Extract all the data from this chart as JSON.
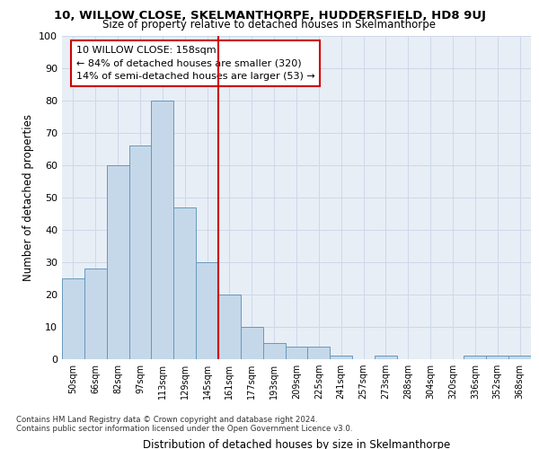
{
  "title": "10, WILLOW CLOSE, SKELMANTHORPE, HUDDERSFIELD, HD8 9UJ",
  "subtitle": "Size of property relative to detached houses in Skelmanthorpe",
  "xlabel": "Distribution of detached houses by size in Skelmanthorpe",
  "ylabel": "Number of detached properties",
  "categories": [
    "50sqm",
    "66sqm",
    "82sqm",
    "97sqm",
    "113sqm",
    "129sqm",
    "145sqm",
    "161sqm",
    "177sqm",
    "193sqm",
    "209sqm",
    "225sqm",
    "241sqm",
    "257sqm",
    "273sqm",
    "288sqm",
    "304sqm",
    "320sqm",
    "336sqm",
    "352sqm",
    "368sqm"
  ],
  "values": [
    25,
    28,
    60,
    66,
    80,
    47,
    30,
    20,
    10,
    5,
    4,
    4,
    1,
    0,
    1,
    0,
    0,
    0,
    1,
    1,
    1
  ],
  "bar_color": "#c5d8ea",
  "bar_edge_color": "#6699bb",
  "vline_color": "#cc0000",
  "vline_x": 6.5,
  "annotation_line1": "10 WILLOW CLOSE: 158sqm",
  "annotation_line2": "← 84% of detached houses are smaller (320)",
  "annotation_line3": "14% of semi-detached houses are larger (53) →",
  "annotation_box_color": "#ffffff",
  "annotation_box_edge_color": "#cc0000",
  "ylim": [
    0,
    100
  ],
  "yticks": [
    0,
    10,
    20,
    30,
    40,
    50,
    60,
    70,
    80,
    90,
    100
  ],
  "grid_color": "#cdd8e8",
  "bg_color": "#e8eef6",
  "footer_line1": "Contains HM Land Registry data © Crown copyright and database right 2024.",
  "footer_line2": "Contains public sector information licensed under the Open Government Licence v3.0."
}
